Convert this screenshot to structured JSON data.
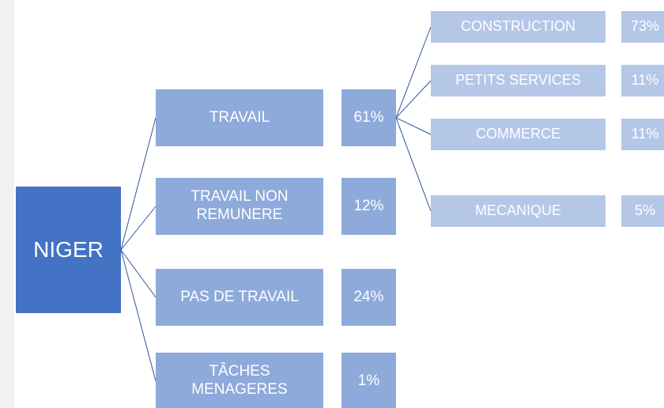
{
  "root": {
    "label": "NIGER"
  },
  "branches": [
    {
      "label_lines": [
        "TRAVAIL"
      ],
      "share": "61%"
    },
    {
      "label_lines": [
        "TRAVAIL NON",
        "REMUNERE"
      ],
      "share": "12%"
    },
    {
      "label_lines": [
        "PAS DE TRAVAIL"
      ],
      "share": "24%"
    },
    {
      "label_lines": [
        "TÂCHES",
        "MENAGERES"
      ],
      "share": "1%"
    }
  ],
  "sub_branches": [
    {
      "label": "CONSTRUCTION",
      "share": "73%"
    },
    {
      "label": "PETITS SERVICES",
      "share": "11%"
    },
    {
      "label": "COMMERCE",
      "share": "11%"
    },
    {
      "label": "MECANIQUE",
      "share": "5%"
    }
  ]
}
